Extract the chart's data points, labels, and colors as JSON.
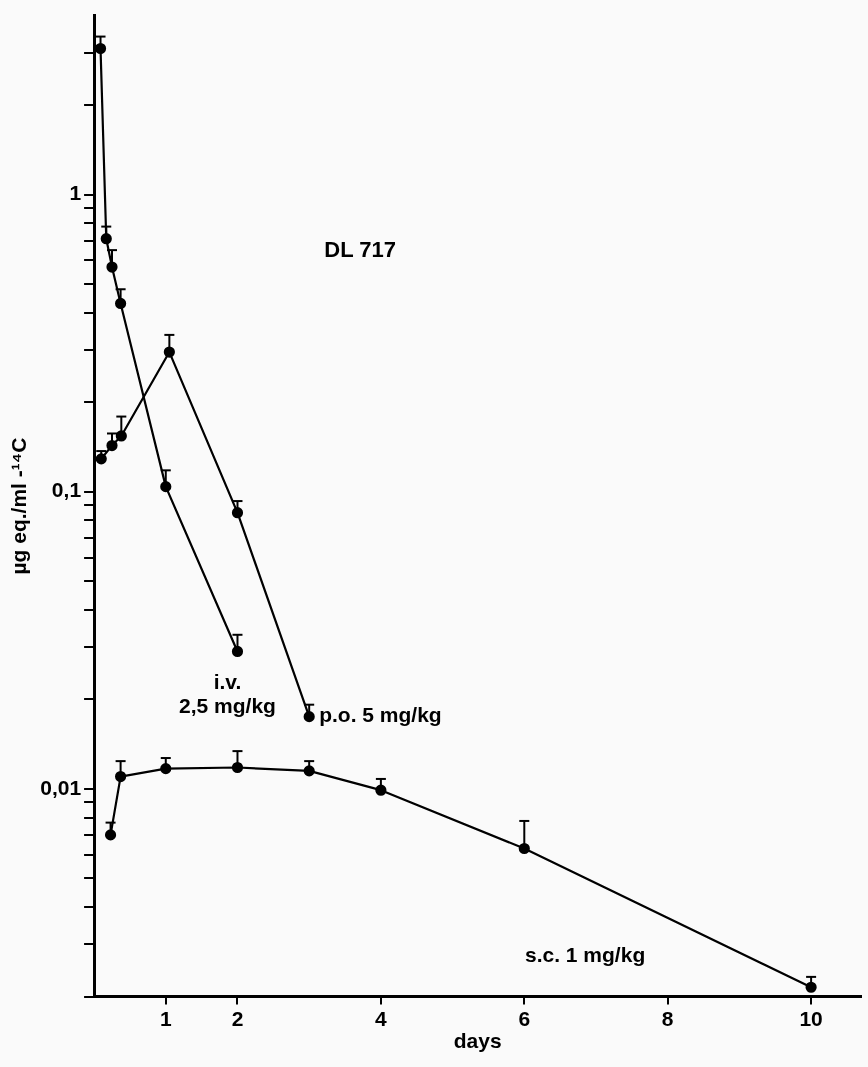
{
  "chart_data": {
    "type": "line",
    "title": "DL 717",
    "xlabel": "days",
    "ylabel": "µg eq./ml -¹⁴C",
    "log": "y",
    "grid": false,
    "marker": "circle",
    "line_style": "solid",
    "xlim": [
      0,
      10.7
    ],
    "xticks": [
      1,
      2,
      4,
      6,
      8,
      10
    ],
    "ylim": [
      0.002,
      4
    ],
    "yticks": [
      {
        "value": 0.002,
        "label": null
      },
      {
        "value": 0.003,
        "label": null
      },
      {
        "value": 0.004,
        "label": null
      },
      {
        "value": 0.005,
        "label": null
      },
      {
        "value": 0.006,
        "label": null
      },
      {
        "value": 0.007,
        "label": null
      },
      {
        "value": 0.008,
        "label": null
      },
      {
        "value": 0.009,
        "label": null
      },
      {
        "value": 0.01,
        "label": "0,01"
      },
      {
        "value": 0.02,
        "label": null
      },
      {
        "value": 0.03,
        "label": null
      },
      {
        "value": 0.04,
        "label": null
      },
      {
        "value": 0.05,
        "label": null
      },
      {
        "value": 0.06,
        "label": null
      },
      {
        "value": 0.07,
        "label": null
      },
      {
        "value": 0.08,
        "label": null
      },
      {
        "value": 0.09,
        "label": null
      },
      {
        "value": 0.1,
        "label": "0,1"
      },
      {
        "value": 0.2,
        "label": null
      },
      {
        "value": 0.3,
        "label": null
      },
      {
        "value": 0.4,
        "label": null
      },
      {
        "value": 0.5,
        "label": null
      },
      {
        "value": 0.6,
        "label": null
      },
      {
        "value": 0.7,
        "label": null
      },
      {
        "value": 0.8,
        "label": null
      },
      {
        "value": 0.9,
        "label": null
      },
      {
        "value": 1,
        "label": "1"
      },
      {
        "value": 2,
        "label": null
      },
      {
        "value": 3,
        "label": null
      }
    ],
    "annotations": [
      {
        "text": "i.v. 2,5 mg/kg",
        "x": 2,
        "y": 0.029
      },
      {
        "text": "p.o. 5 mg/kg",
        "x": 3,
        "y": 0.0175
      },
      "s.c. 1 mg/kg"
    ],
    "series": [
      {
        "color": "#000000",
        "x": [
          0.09,
          0.17,
          0.25,
          0.37,
          1,
          2
        ],
        "values": [
          3.1,
          0.71,
          0.57,
          0.43,
          0.104,
          0.029
        ],
        "errors": [
          [
            3.1,
            3.4
          ],
          [
            0.71,
            0.78
          ],
          [
            0.57,
            0.65
          ],
          [
            0.43,
            0.48
          ],
          [
            0.104,
            0.118
          ],
          [
            0.029,
            0.033
          ]
        ]
      },
      {
        "color": "#000000",
        "x": [
          0.1,
          0.25,
          0.38,
          1.05,
          2,
          3
        ],
        "values": [
          0.129,
          0.143,
          0.154,
          0.295,
          0.085,
          0.0175
        ],
        "errors": [
          [
            0.129,
            0.137
          ],
          [
            0.143,
            0.157
          ],
          [
            0.154,
            0.179
          ],
          [
            0.295,
            0.337
          ],
          [
            0.085,
            0.093
          ],
          [
            0.0175,
            0.0192
          ]
        ]
      },
      {
        "color": "#000000",
        "x": [
          0.23,
          0.37,
          1,
          2,
          3,
          4,
          6,
          10
        ],
        "values": [
          0.007,
          0.011,
          0.0117,
          0.0118,
          0.0115,
          0.0099,
          0.0063,
          0.00215
        ],
        "errors": [
          [
            0.007,
            0.0077
          ],
          [
            0.011,
            0.0124
          ],
          [
            0.0117,
            0.0127
          ],
          [
            0.0118,
            0.0134
          ],
          [
            0.0115,
            0.0124
          ],
          [
            0.0099,
            0.0108
          ],
          [
            0.0063,
            0.0078
          ],
          [
            0.00215,
            0.00233
          ]
        ]
      }
    ]
  }
}
